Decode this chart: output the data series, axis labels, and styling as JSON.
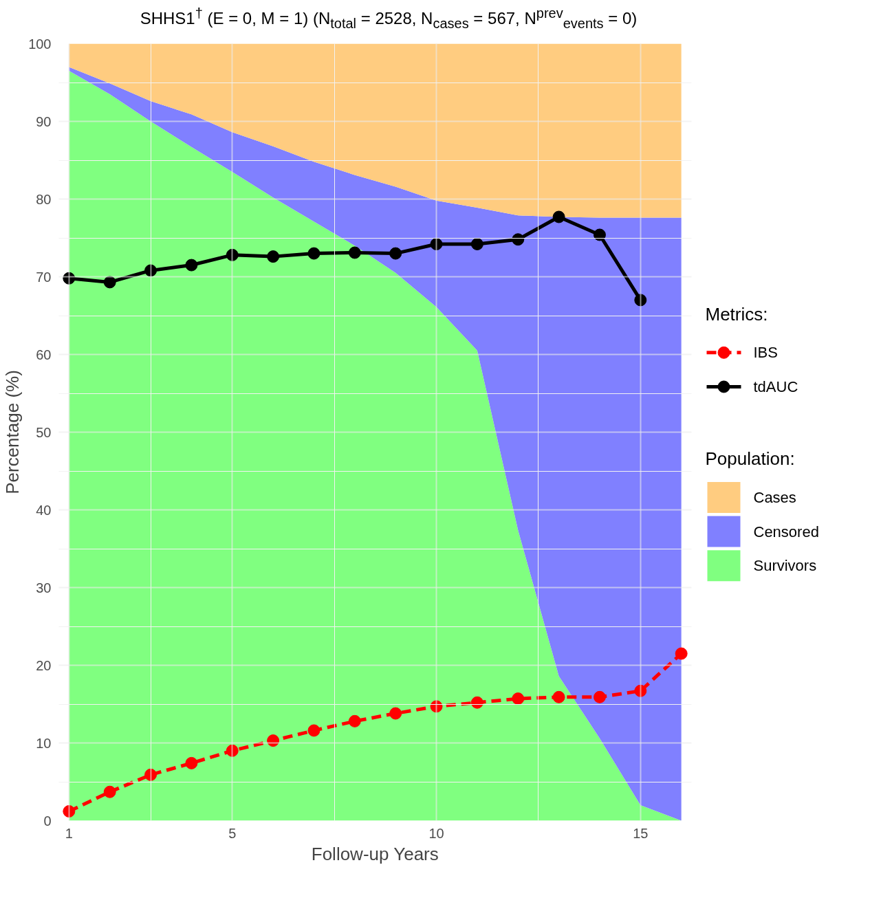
{
  "chart_data": {
    "type": "area",
    "title": "SHHS1$^{†}$ (E = 0, M = 1) (N$_{total}$ = 2528, N$_{cases}$ = 567, N$^{prev}$$_{events}$ = 0)",
    "xlabel": "Follow-up Years",
    "ylabel": "Percentage (%)",
    "legend_title": [
      "Metrics:",
      "Population:"
    ],
    "x": [
      1,
      2,
      3,
      4,
      5,
      6,
      7,
      8,
      9,
      10,
      11,
      12,
      13,
      14,
      15,
      16
    ],
    "stacked": true,
    "series": [
      {
        "name": "Survivors",
        "color": "#80ff80",
        "values": [
          96.5,
          93.5,
          90.0,
          86.7,
          83.5,
          80.2,
          77.1,
          74.0,
          70.5,
          66.1,
          60.5,
          37.4,
          18.6,
          10.6,
          2.0,
          0
        ]
      },
      {
        "name": "Censored",
        "color": "#8080ff",
        "values": [
          0.5,
          1.4,
          2.6,
          4.2,
          5.1,
          6.6,
          7.7,
          9.1,
          11.1,
          13.7,
          18.4,
          40.5,
          59.1,
          67.0,
          75.6,
          77.6
        ]
      },
      {
        "name": "Cases",
        "color": "#ffcc80",
        "values": [
          3.0,
          5.1,
          7.4,
          9.1,
          11.4,
          13.2,
          15.2,
          16.9,
          18.4,
          20.2,
          21.1,
          22.1,
          22.3,
          22.4,
          22.4,
          22.4
        ]
      },
      {
        "name": "IBS",
        "type": "line",
        "color": "#ff0000",
        "line_style": "dashed",
        "marker": "circle",
        "values": [
          1.2,
          3.7,
          5.9,
          7.4,
          9.0,
          10.3,
          11.6,
          12.8,
          13.8,
          14.7,
          15.2,
          15.7,
          15.9,
          15.9,
          16.7,
          21.5
        ]
      },
      {
        "name": "tdAUC",
        "type": "line",
        "color": "#000000",
        "line_style": "solid",
        "marker": "circle",
        "values": [
          69.8,
          69.3,
          70.8,
          71.5,
          72.8,
          72.6,
          73.0,
          73.1,
          73.0,
          74.2,
          74.2,
          74.8,
          77.7,
          75.4,
          67.0,
          null
        ]
      }
    ],
    "xlim": [
      0.75,
      16.25
    ],
    "ylim": [
      0,
      100
    ],
    "xticks": [
      1,
      5,
      10,
      15
    ],
    "yticks": [
      0,
      10,
      20,
      30,
      40,
      50,
      60,
      70,
      80,
      90,
      100
    ],
    "grid": true,
    "legend": "right"
  }
}
